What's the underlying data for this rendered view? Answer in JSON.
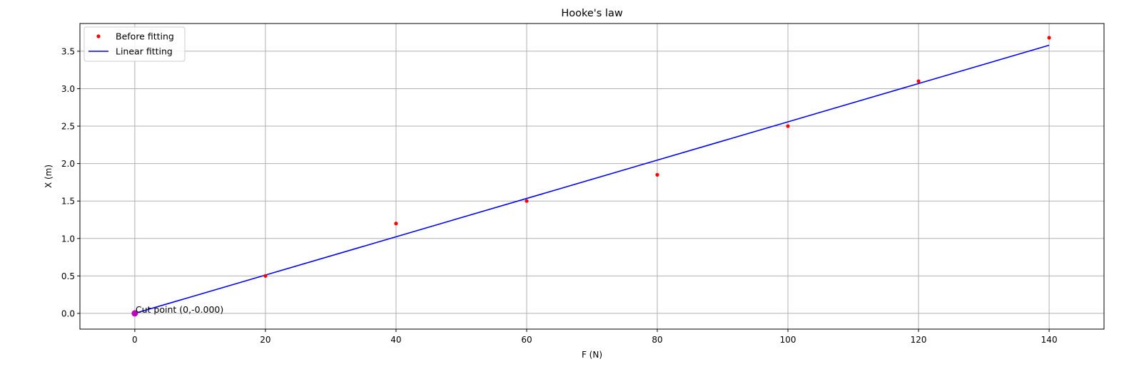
{
  "chart_data": {
    "type": "line",
    "title": "Hooke's law",
    "xlabel": "F (N)",
    "ylabel": "X (m)",
    "xlim": [
      -8.4,
      148.4
    ],
    "ylim": [
      -0.21,
      3.87
    ],
    "xticks": [
      0,
      20,
      40,
      60,
      80,
      100,
      120,
      140
    ],
    "yticks": [
      0.0,
      0.5,
      1.0,
      1.5,
      2.0,
      2.5,
      3.0,
      3.5
    ],
    "xtick_labels": [
      "0",
      "20",
      "40",
      "60",
      "80",
      "100",
      "120",
      "140"
    ],
    "ytick_labels": [
      "0.0",
      "0.5",
      "1.0",
      "1.5",
      "2.0",
      "2.5",
      "3.0",
      "3.5"
    ],
    "grid": true,
    "legend_position": "top-left",
    "series": [
      {
        "name": "Before fitting",
        "kind": "scatter",
        "color": "#ff0000",
        "x": [
          0,
          20,
          40,
          60,
          80,
          100,
          120,
          140
        ],
        "y": [
          0.0,
          0.5,
          1.2,
          1.5,
          1.85,
          2.5,
          3.1,
          3.68
        ]
      },
      {
        "name": "Linear fitting",
        "kind": "line",
        "color": "#0000ff",
        "x": [
          0,
          140
        ],
        "y": [
          0.0,
          3.58
        ]
      }
    ],
    "annotation": {
      "text": "Cut point (0,-0.000)",
      "x": 0,
      "y": 0.0,
      "marker_color": "#bf00bf"
    }
  }
}
